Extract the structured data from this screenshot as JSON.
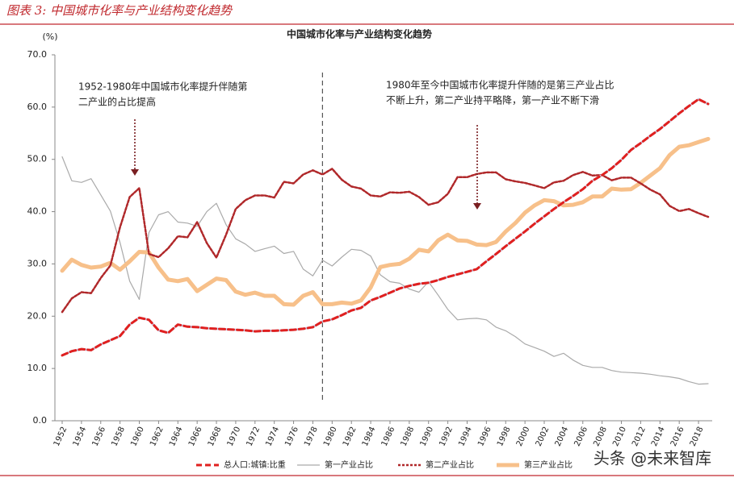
{
  "header": "图表 3:  中国城市化率与产业结构变化趋势",
  "watermark": "头条 @未来智库",
  "chart_data": {
    "type": "line",
    "title": "中国城市化率与产业结构变化趋势",
    "y_label": "(%)",
    "x": [
      1952,
      1953,
      1954,
      1955,
      1956,
      1957,
      1958,
      1959,
      1960,
      1961,
      1962,
      1963,
      1964,
      1965,
      1966,
      1967,
      1968,
      1969,
      1970,
      1971,
      1972,
      1973,
      1974,
      1975,
      1976,
      1977,
      1978,
      1979,
      1980,
      1981,
      1982,
      1983,
      1984,
      1985,
      1986,
      1987,
      1988,
      1989,
      1990,
      1991,
      1992,
      1993,
      1994,
      1995,
      1996,
      1997,
      1998,
      1999,
      2000,
      2001,
      2002,
      2003,
      2004,
      2005,
      2006,
      2007,
      2008,
      2009,
      2010,
      2011,
      2012,
      2013,
      2014,
      2015,
      2016,
      2017,
      2018,
      2019
    ],
    "xlim": [
      1952,
      2019
    ],
    "xticks": [
      1952,
      1954,
      1956,
      1958,
      1960,
      1962,
      1964,
      1966,
      1968,
      1970,
      1972,
      1974,
      1976,
      1978,
      1980,
      1982,
      1984,
      1986,
      1988,
      1990,
      1992,
      1994,
      1996,
      1998,
      2000,
      2002,
      2004,
      2006,
      2008,
      2010,
      2012,
      2014,
      2016,
      2018
    ],
    "ylim": [
      0,
      70
    ],
    "yticks": [
      {
        "value": 0,
        "label": "0.0"
      },
      {
        "value": 10,
        "label": "10.0"
      },
      {
        "value": 20,
        "label": "20.0"
      },
      {
        "value": 30,
        "label": "30.0"
      },
      {
        "value": 40,
        "label": "40.0"
      },
      {
        "value": 50,
        "label": "50.0"
      },
      {
        "value": 60,
        "label": "60.0"
      },
      {
        "value": 70,
        "label": "70.0"
      }
    ],
    "reference_line": {
      "x": 1979
    },
    "annotations": [
      {
        "lines": [
          "1952-1980年中国城市化率提升伴随第",
          "二产业的占比提高"
        ]
      },
      {
        "lines": [
          "1980年至今中国城市化率提升伴随的是第三产业占比",
          "不断上升，第二产业持平略降，第一产业不断下滑"
        ]
      }
    ],
    "series": [
      {
        "name": "总人口:城镇:比重",
        "color": "#e0201f",
        "values": [
          12.5,
          13.3,
          13.7,
          13.5,
          14.6,
          15.4,
          16.2,
          18.4,
          19.7,
          19.3,
          17.3,
          16.8,
          18.4,
          18.0,
          17.9,
          17.7,
          17.6,
          17.5,
          17.4,
          17.3,
          17.1,
          17.2,
          17.2,
          17.3,
          17.4,
          17.6,
          17.9,
          19.0,
          19.4,
          20.2,
          21.1,
          21.6,
          23.0,
          23.7,
          24.5,
          25.3,
          25.8,
          26.2,
          26.4,
          26.9,
          27.5,
          28.0,
          28.5,
          29.0,
          30.5,
          31.9,
          33.4,
          34.8,
          36.2,
          37.7,
          39.1,
          40.5,
          41.8,
          43.0,
          44.3,
          45.9,
          47.0,
          48.3,
          49.9,
          51.8,
          53.1,
          54.5,
          55.8,
          57.3,
          58.8,
          60.2,
          61.5,
          60.6
        ]
      },
      {
        "name": "第一产业占比",
        "color": "#aaaaaa",
        "values": [
          50.5,
          45.9,
          45.6,
          46.3,
          43.2,
          40.1,
          34.1,
          26.7,
          23.2,
          36.0,
          39.4,
          40.0,
          38.0,
          37.8,
          37.2,
          40.0,
          41.6,
          37.5,
          34.8,
          33.8,
          32.4,
          32.9,
          33.4,
          32.0,
          32.4,
          29.0,
          27.7,
          30.7,
          29.6,
          31.3,
          32.8,
          32.6,
          31.5,
          27.9,
          26.6,
          26.3,
          25.2,
          24.6,
          26.6,
          24.0,
          21.3,
          19.3,
          19.5,
          19.6,
          19.3,
          17.9,
          17.2,
          16.1,
          14.7,
          14.0,
          13.3,
          12.3,
          12.9,
          11.6,
          10.6,
          10.2,
          10.2,
          9.6,
          9.3,
          9.2,
          9.1,
          8.9,
          8.6,
          8.4,
          8.1,
          7.5,
          7.0,
          7.1
        ]
      },
      {
        "name": "第二产业占比",
        "color": "#b0282a",
        "values": [
          20.8,
          23.4,
          24.6,
          24.4,
          27.3,
          29.7,
          37.0,
          42.8,
          44.5,
          31.9,
          31.3,
          33.0,
          35.3,
          35.1,
          38.0,
          34.0,
          31.2,
          35.6,
          40.5,
          42.2,
          43.1,
          43.1,
          42.7,
          45.7,
          45.4,
          47.1,
          47.9,
          47.1,
          48.2,
          46.1,
          44.8,
          44.4,
          43.1,
          42.9,
          43.7,
          43.6,
          43.8,
          42.8,
          41.3,
          41.8,
          43.4,
          46.6,
          46.6,
          47.2,
          47.5,
          47.5,
          46.2,
          45.8,
          45.5,
          45.0,
          44.5,
          45.6,
          45.9,
          47.0,
          47.6,
          46.9,
          47.0,
          46.0,
          46.5,
          46.5,
          45.4,
          44.2,
          43.3,
          41.1,
          40.1,
          40.5,
          39.7,
          39.0
        ]
      },
      {
        "name": "第三产业占比",
        "color": "#f7c08a",
        "values": [
          28.7,
          30.8,
          29.8,
          29.3,
          29.5,
          30.2,
          28.9,
          30.5,
          32.3,
          32.2,
          29.3,
          27.0,
          26.7,
          27.1,
          24.8,
          26.0,
          27.2,
          26.9,
          24.7,
          24.1,
          24.5,
          23.9,
          23.9,
          22.3,
          22.2,
          23.9,
          24.6,
          22.3,
          22.3,
          22.6,
          22.4,
          23.0,
          25.5,
          29.4,
          29.8,
          30.0,
          31.0,
          32.7,
          32.4,
          34.5,
          35.6,
          34.5,
          34.4,
          33.7,
          33.6,
          34.2,
          36.2,
          37.8,
          39.8,
          41.2,
          42.2,
          42.0,
          41.2,
          41.3,
          41.8,
          42.9,
          42.9,
          44.4,
          44.2,
          44.3,
          45.5,
          46.9,
          48.3,
          50.8,
          52.4,
          52.7,
          53.3,
          53.9
        ]
      }
    ]
  }
}
